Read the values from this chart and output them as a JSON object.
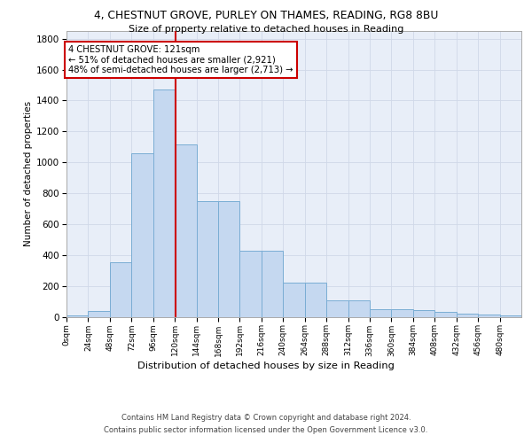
{
  "title_line1": "4, CHESTNUT GROVE, PURLEY ON THAMES, READING, RG8 8BU",
  "title_line2": "Size of property relative to detached houses in Reading",
  "xlabel": "Distribution of detached houses by size in Reading",
  "ylabel": "Number of detached properties",
  "bar_color": "#c5d8f0",
  "bar_edge_color": "#7aadd4",
  "background_color": "#e8eef8",
  "grid_color": "#d0d8e8",
  "bar_heights": [
    10,
    35,
    355,
    1060,
    1470,
    1115,
    750,
    750,
    430,
    430,
    220,
    220,
    108,
    108,
    50,
    50,
    42,
    30,
    20,
    15,
    10
  ],
  "annotation_text_line1": "4 CHESTNUT GROVE: 121sqm",
  "annotation_text_line2": "← 51% of detached houses are smaller (2,921)",
  "annotation_text_line3": "48% of semi-detached houses are larger (2,713) →",
  "annotation_box_color": "#cc0000",
  "vline_color": "#cc0000",
  "vline_x": 121,
  "footnote_line1": "Contains HM Land Registry data © Crown copyright and database right 2024.",
  "footnote_line2": "Contains public sector information licensed under the Open Government Licence v3.0.",
  "ylim": [
    0,
    1850
  ],
  "xlim": [
    0,
    504
  ],
  "bin_width": 24,
  "n_bins": 21
}
